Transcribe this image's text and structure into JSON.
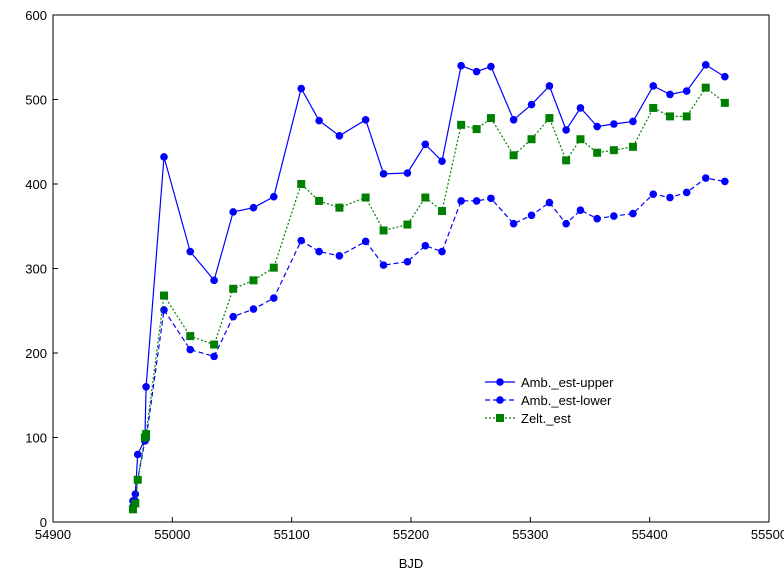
{
  "chart_data": {
    "type": "line",
    "title": "",
    "xlabel": "BJD",
    "ylabel": "",
    "xlim": [
      54900,
      55500
    ],
    "ylim": [
      0,
      600
    ],
    "xticks": [
      54900,
      55000,
      55100,
      55200,
      55300,
      55400,
      55500
    ],
    "yticks": [
      0,
      100,
      200,
      300,
      400,
      500,
      600
    ],
    "grid": false,
    "legend_position": "inside-lower-right",
    "series": [
      {
        "name": "Amb._est-upper",
        "color": "#0000ff",
        "line_style": "solid",
        "marker": "circle",
        "x": [
          54967,
          54969,
          54971,
          54977,
          54978,
          54993,
          55015,
          55035,
          55051,
          55068,
          55085,
          55108,
          55123,
          55140,
          55162,
          55177,
          55197,
          55212,
          55226,
          55242,
          55255,
          55267,
          55286,
          55301,
          55316,
          55330,
          55342,
          55356,
          55370,
          55386,
          55403,
          55417,
          55431,
          55447,
          55463
        ],
        "y": [
          25,
          33,
          80,
          98,
          160,
          432,
          320,
          286,
          367,
          372,
          385,
          513,
          475,
          457,
          476,
          412,
          413,
          447,
          427,
          540,
          533,
          539,
          476,
          494,
          516,
          464,
          490,
          468,
          471,
          474,
          516,
          506,
          510,
          541,
          527
        ]
      },
      {
        "name": "Amb._est-lower",
        "color": "#0000ff",
        "line_style": "dashed",
        "marker": "circle",
        "x": [
          54967,
          54969,
          54971,
          54977,
          54978,
          54993,
          55015,
          55035,
          55051,
          55068,
          55085,
          55108,
          55123,
          55140,
          55162,
          55177,
          55197,
          55212,
          55226,
          55242,
          55255,
          55267,
          55286,
          55301,
          55316,
          55330,
          55342,
          55356,
          55370,
          55386,
          55403,
          55417,
          55431,
          55447,
          55463
        ],
        "y": [
          18,
          25,
          50,
          96,
          98,
          251,
          204,
          196,
          243,
          252,
          265,
          333,
          320,
          315,
          332,
          304,
          308,
          327,
          320,
          380,
          380,
          383,
          353,
          363,
          378,
          353,
          369,
          359,
          362,
          365,
          388,
          384,
          390,
          407,
          403
        ]
      },
      {
        "name": "Zelt._est",
        "color": "#008000",
        "line_style": "dotted",
        "marker": "square",
        "x": [
          54967,
          54969,
          54971,
          54977,
          54978,
          54993,
          55015,
          55035,
          55051,
          55068,
          55085,
          55108,
          55123,
          55140,
          55162,
          55177,
          55197,
          55212,
          55226,
          55242,
          55255,
          55267,
          55286,
          55301,
          55316,
          55330,
          55342,
          55356,
          55370,
          55386,
          55403,
          55417,
          55431,
          55447,
          55463
        ],
        "y": [
          15,
          22,
          50,
          100,
          104,
          268,
          220,
          210,
          276,
          286,
          301,
          400,
          380,
          372,
          384,
          345,
          352,
          384,
          368,
          470,
          465,
          478,
          434,
          453,
          478,
          428,
          453,
          437,
          440,
          444,
          490,
          480,
          480,
          514,
          496
        ]
      }
    ]
  }
}
